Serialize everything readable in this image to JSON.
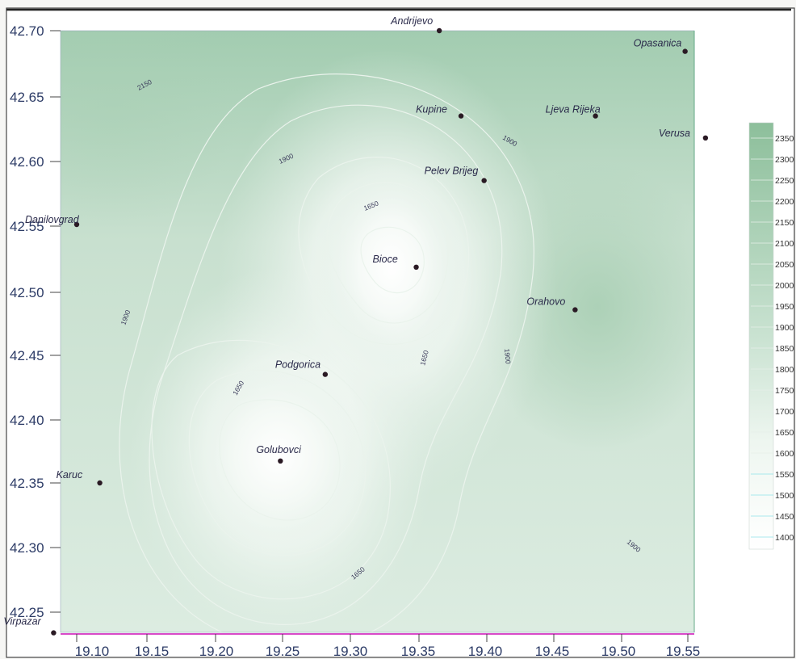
{
  "map": {
    "x_axis": {
      "ticks": [
        "19.10",
        "19.15",
        "19.20",
        "19.25",
        "19.30",
        "19.35",
        "19.40",
        "19.45",
        "19.50",
        "19.55"
      ]
    },
    "y_axis": {
      "ticks": [
        "42.70",
        "42.65",
        "42.60",
        "42.55",
        "42.50",
        "42.45",
        "42.40",
        "42.35",
        "42.30",
        "42.25"
      ]
    },
    "places": [
      {
        "name": "Andrijevo",
        "lon": 19.367,
        "lat": 42.7
      },
      {
        "name": "Opasanica",
        "lon": 19.548,
        "lat": 42.684
      },
      {
        "name": "Kupine",
        "lon": 19.383,
        "lat": 42.634
      },
      {
        "name": "Ljeva Rijeka",
        "lon": 19.482,
        "lat": 42.634
      },
      {
        "name": "Verusa",
        "lon": 19.563,
        "lat": 42.617
      },
      {
        "name": "Pelev Brijeg",
        "lon": 19.4,
        "lat": 42.584
      },
      {
        "name": "Danilovgrad",
        "lon": 19.1,
        "lat": 42.55
      },
      {
        "name": "Bioce",
        "lon": 19.35,
        "lat": 42.517
      },
      {
        "name": "Orahovo",
        "lon": 19.467,
        "lat": 42.484
      },
      {
        "name": "Podgorica",
        "lon": 19.283,
        "lat": 42.434
      },
      {
        "name": "Golubovci",
        "lon": 19.25,
        "lat": 42.367
      },
      {
        "name": "Karuc",
        "lon": 19.117,
        "lat": 42.35
      },
      {
        "name": "Virpazar",
        "lon": 19.083,
        "lat": 42.234
      }
    ],
    "contour_labels": [
      "2150",
      "1900",
      "1900",
      "1650",
      "1900",
      "1650",
      "1900",
      "1650",
      "1650",
      "1900"
    ],
    "colors": {
      "high": "#8dbf9b",
      "mid": "#cfe5d6",
      "low": "#ffffff",
      "place_marker": "#2a1a24",
      "tick_text": "#2c3b66"
    }
  },
  "legend": {
    "values": [
      "2350",
      "2300",
      "2250",
      "2200",
      "2150",
      "2100",
      "2050",
      "2000",
      "1950",
      "1900",
      "1850",
      "1800",
      "1750",
      "1700",
      "1650",
      "1600",
      "1550",
      "1500",
      "1450",
      "1400"
    ]
  }
}
